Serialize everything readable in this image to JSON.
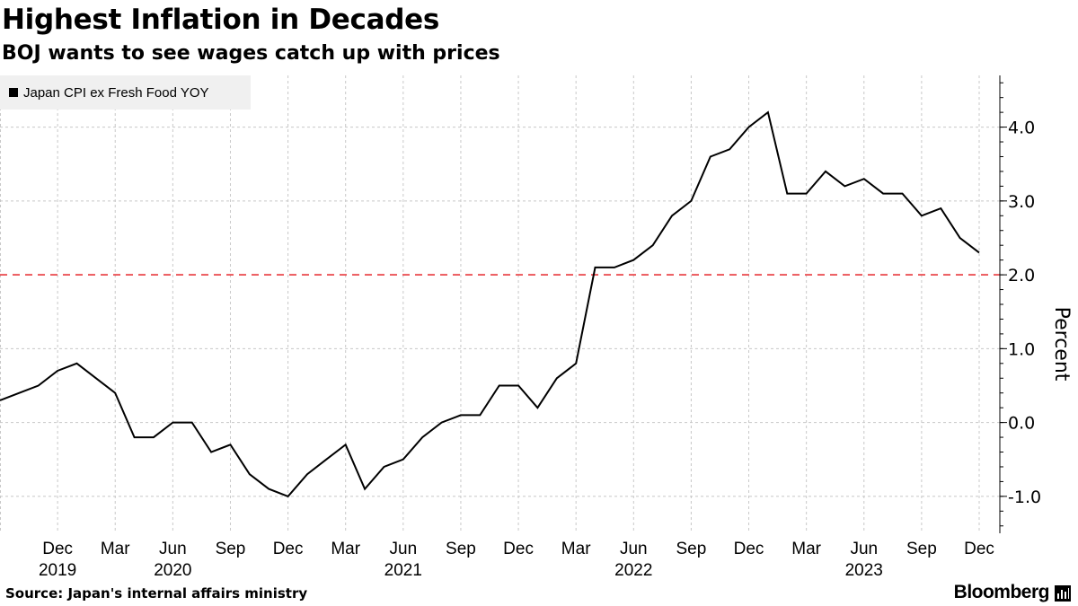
{
  "title": "Highest Inflation in Decades",
  "subtitle": "BOJ wants to see wages catch up with prices",
  "source": "Source: Japan's internal affairs ministry",
  "brand": "Bloomberg",
  "chart_data": {
    "type": "line",
    "title": "Highest Inflation in Decades",
    "subtitle": "BOJ wants to see wages catch up with prices",
    "ylabel": "Percent",
    "xlabel": "",
    "ylim": [
      -1.5,
      4.7
    ],
    "yticks": [
      -1.0,
      0.0,
      1.0,
      2.0,
      3.0,
      4.0
    ],
    "ytick_labels": [
      "-1.0",
      "0.0",
      "1.0",
      "2.0",
      "3.0",
      "4.0"
    ],
    "xlim": [
      "2019-09",
      "2023-12"
    ],
    "xticks": [
      {
        "month": "2019-12",
        "label": "Dec",
        "year": "2019"
      },
      {
        "month": "2020-03",
        "label": "Mar"
      },
      {
        "month": "2020-06",
        "label": "Jun",
        "year": "2020"
      },
      {
        "month": "2020-09",
        "label": "Sep"
      },
      {
        "month": "2020-12",
        "label": "Dec"
      },
      {
        "month": "2021-03",
        "label": "Mar"
      },
      {
        "month": "2021-06",
        "label": "Jun",
        "year": "2021"
      },
      {
        "month": "2021-09",
        "label": "Sep"
      },
      {
        "month": "2021-12",
        "label": "Dec"
      },
      {
        "month": "2022-03",
        "label": "Mar"
      },
      {
        "month": "2022-06",
        "label": "Jun",
        "year": "2022"
      },
      {
        "month": "2022-09",
        "label": "Sep"
      },
      {
        "month": "2022-12",
        "label": "Dec"
      },
      {
        "month": "2023-03",
        "label": "Mar"
      },
      {
        "month": "2023-06",
        "label": "Jun",
        "year": "2023"
      },
      {
        "month": "2023-09",
        "label": "Sep"
      },
      {
        "month": "2023-12",
        "label": "Dec"
      }
    ],
    "reference_line": {
      "value": 2.0,
      "color": "#e8383d",
      "style": "dashed"
    },
    "line_color": "#000000",
    "grid": true,
    "legend": "top-left",
    "series": [
      {
        "name": "Japan CPI ex Fresh Food YOY",
        "x": [
          "2019-09",
          "2019-10",
          "2019-11",
          "2019-12",
          "2020-01",
          "2020-02",
          "2020-03",
          "2020-04",
          "2020-05",
          "2020-06",
          "2020-07",
          "2020-08",
          "2020-09",
          "2020-10",
          "2020-11",
          "2020-12",
          "2021-01",
          "2021-02",
          "2021-03",
          "2021-04",
          "2021-05",
          "2021-06",
          "2021-07",
          "2021-08",
          "2021-09",
          "2021-10",
          "2021-11",
          "2021-12",
          "2022-01",
          "2022-02",
          "2022-03",
          "2022-04",
          "2022-05",
          "2022-06",
          "2022-07",
          "2022-08",
          "2022-09",
          "2022-10",
          "2022-11",
          "2022-12",
          "2023-01",
          "2023-02",
          "2023-03",
          "2023-04",
          "2023-05",
          "2023-06",
          "2023-07",
          "2023-08",
          "2023-09",
          "2023-10",
          "2023-11",
          "2023-12"
        ],
        "values": [
          0.3,
          0.4,
          0.5,
          0.7,
          0.8,
          0.6,
          0.4,
          -0.2,
          -0.2,
          0.0,
          0.0,
          -0.4,
          -0.3,
          -0.7,
          -0.9,
          -1.0,
          -0.7,
          -0.5,
          -0.3,
          -0.9,
          -0.6,
          -0.5,
          -0.2,
          0.0,
          0.1,
          0.1,
          0.5,
          0.5,
          0.2,
          0.6,
          0.8,
          2.1,
          2.1,
          2.2,
          2.4,
          2.8,
          3.0,
          3.6,
          3.7,
          4.0,
          4.2,
          3.1,
          3.1,
          3.4,
          3.2,
          3.3,
          3.1,
          3.1,
          2.8,
          2.9,
          2.5,
          2.3
        ]
      }
    ]
  }
}
